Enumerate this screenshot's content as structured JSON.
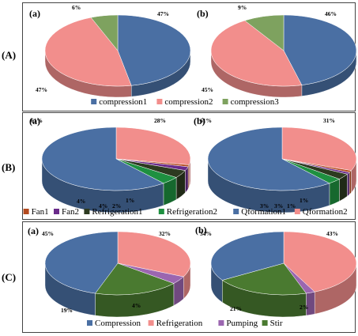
{
  "rows": [
    {
      "label": "(A)"
    },
    {
      "label": "(B)"
    },
    {
      "label": "(C)"
    }
  ],
  "colors": {
    "compression1": "#4a6fa3",
    "compression2": "#f28e8c",
    "compression3": "#7ea25f",
    "Fan1": "#b34a1f",
    "Fan2": "#6a2b8a",
    "Refrigeration1": "#2d3a20",
    "Refrigeration2": "#1e9040",
    "Qformation1": "#4a6fa3",
    "Qformation2": "#f28e8c",
    "Compression": "#4a6fa3",
    "Refrigeration": "#f28e8c",
    "Pumping": "#9b66b0",
    "Stir": "#4a7a30"
  },
  "chart_data": [
    {
      "type": "pie",
      "row": "(A)",
      "panel": "(a)",
      "series": [
        {
          "name": "compression1",
          "value": 47
        },
        {
          "name": "compression2",
          "value": 47
        },
        {
          "name": "compression3",
          "value": 6
        }
      ],
      "labels": [
        "47%",
        "47%",
        "6%"
      ]
    },
    {
      "type": "pie",
      "row": "(A)",
      "panel": "(b)",
      "series": [
        {
          "name": "compression1",
          "value": 46
        },
        {
          "name": "compression2",
          "value": 45
        },
        {
          "name": "compression3",
          "value": 9
        }
      ],
      "labels": [
        "46%",
        "45%",
        "9%"
      ]
    },
    {
      "type": "pie",
      "row": "(B)",
      "panel": "(a)",
      "series": [
        {
          "name": "Qformation2",
          "value": 28
        },
        {
          "name": "Fan1",
          "value": 1
        },
        {
          "name": "Fan2",
          "value": 2
        },
        {
          "name": "Refrigeration1",
          "value": 4
        },
        {
          "name": "Refrigeration2",
          "value": 4
        },
        {
          "name": "Qformation1",
          "value": 61
        }
      ],
      "labels": [
        "28%",
        "1%",
        "2%",
        "4%",
        "4%",
        "61%"
      ]
    },
    {
      "type": "pie",
      "row": "(B)",
      "panel": "(b)",
      "series": [
        {
          "name": "Qformation2",
          "value": 31
        },
        {
          "name": "Fan1",
          "value": 1
        },
        {
          "name": "Fan2",
          "value": 1
        },
        {
          "name": "Refrigeration1",
          "value": 3
        },
        {
          "name": "Refrigeration2",
          "value": 3
        },
        {
          "name": "Qformation1",
          "value": 61
        }
      ],
      "labels": [
        "31%",
        "1%",
        "1%",
        "3%",
        "3%",
        "61%"
      ]
    },
    {
      "type": "pie",
      "row": "(C)",
      "panel": "(a)",
      "series": [
        {
          "name": "Refrigeration",
          "value": 32
        },
        {
          "name": "Pumping",
          "value": 4
        },
        {
          "name": "Stir",
          "value": 19
        },
        {
          "name": "Compression",
          "value": 45
        }
      ],
      "labels": [
        "32%",
        "4%",
        "19%",
        "45%"
      ]
    },
    {
      "type": "pie",
      "row": "(C)",
      "panel": "(b)",
      "series": [
        {
          "name": "Refrigeration",
          "value": 43
        },
        {
          "name": "Pumping",
          "value": 2
        },
        {
          "name": "Stir",
          "value": 21
        },
        {
          "name": "Compression",
          "value": 34
        }
      ],
      "labels": [
        "43%",
        "2%",
        "21%",
        "34%"
      ]
    }
  ],
  "legends": [
    [
      "compression1",
      "compression2",
      "compression3"
    ],
    [
      "Fan1",
      "Fan2",
      "Refrigeration1",
      "Refrigeration2",
      "Qformation1",
      "Qformation2"
    ],
    [
      "Compression",
      "Refrigeration",
      "Pumping",
      "Stir"
    ]
  ]
}
